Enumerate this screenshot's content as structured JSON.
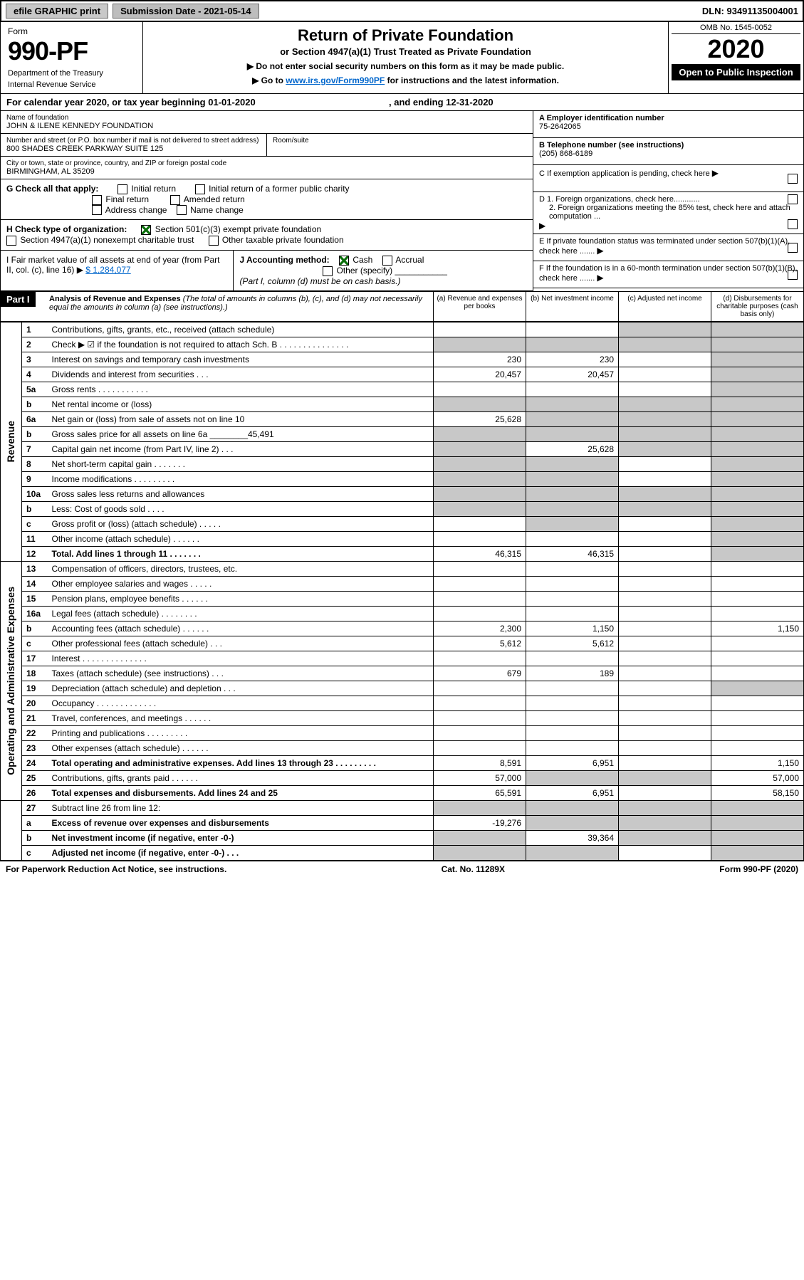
{
  "topbar": {
    "efile": "efile GRAPHIC print",
    "submission": "Submission Date - 2021-05-14",
    "dln": "DLN: 93491135004001"
  },
  "header": {
    "form_label": "Form",
    "form_no": "990-PF",
    "dept": "Department of the Treasury",
    "irs": "Internal Revenue Service",
    "title": "Return of Private Foundation",
    "subtitle": "or Section 4947(a)(1) Trust Treated as Private Foundation",
    "note1": "▶ Do not enter social security numbers on this form as it may be made public.",
    "note2_pre": "▶ Go to ",
    "note2_link": "www.irs.gov/Form990PF",
    "note2_post": " for instructions and the latest information.",
    "omb": "OMB No. 1545-0052",
    "year": "2020",
    "open": "Open to Public Inspection"
  },
  "cal": {
    "text_pre": "For calendar year 2020, or tax year beginning ",
    "begin": "01-01-2020",
    "text_mid": ", and ending ",
    "end": "12-31-2020"
  },
  "info": {
    "name_label": "Name of foundation",
    "name": "JOHN & ILENE KENNEDY FOUNDATION",
    "addr_label": "Number and street (or P.O. box number if mail is not delivered to street address)",
    "addr": "800 SHADES CREEK PARKWAY SUITE 125",
    "room_label": "Room/suite",
    "city_label": "City or town, state or province, country, and ZIP or foreign postal code",
    "city": "BIRMINGHAM, AL  35209",
    "ein_label": "A Employer identification number",
    "ein": "75-2642065",
    "tel_label": "B Telephone number (see instructions)",
    "tel": "(205) 868-6189",
    "c_label": "C If exemption application is pending, check here",
    "d1": "D 1. Foreign organizations, check here............",
    "d2": "2. Foreign organizations meeting the 85% test, check here and attach computation ...",
    "e_label": "E  If private foundation status was terminated under section 507(b)(1)(A), check here .......",
    "f_label": "F  If the foundation is in a 60-month termination under section 507(b)(1)(B), check here .......",
    "g_label": "G Check all that apply:",
    "g_items": [
      "Initial return",
      "Initial return of a former public charity",
      "Final return",
      "Amended return",
      "Address change",
      "Name change"
    ],
    "h_label": "H Check type of organization:",
    "h1": "Section 501(c)(3) exempt private foundation",
    "h2": "Section 4947(a)(1) nonexempt charitable trust",
    "h3": "Other taxable private foundation",
    "i_label": "I Fair market value of all assets at end of year (from Part II, col. (c), line 16) ▶",
    "i_val": "$  1,284,077",
    "j_label": "J Accounting method:",
    "j_cash": "Cash",
    "j_accrual": "Accrual",
    "j_other": "Other (specify)",
    "j_note": "(Part I, column (d) must be on cash basis.)"
  },
  "part1": {
    "label": "Part I",
    "title": "Analysis of Revenue and Expenses",
    "title_note": " (The total of amounts in columns (b), (c), and (d) may not necessarily equal the amounts in column (a) (see instructions).)",
    "col_a": "(a) Revenue and expenses per books",
    "col_b": "(b) Net investment income",
    "col_c": "(c) Adjusted net income",
    "col_d": "(d) Disbursements for charitable purposes (cash basis only)"
  },
  "sections": {
    "revenue": "Revenue",
    "opex": "Operating and Administrative Expenses"
  },
  "rows": [
    {
      "n": "1",
      "d": "Contributions, gifts, grants, etc., received (attach schedule)",
      "a": "",
      "b": "",
      "c": "grey",
      "dcol": "grey"
    },
    {
      "n": "2",
      "d": "Check ▶ ☑ if the foundation is not required to attach Sch. B    .   .   .   .   .   .   .   .   .   .   .   .   .   .   .",
      "a": "grey",
      "b": "grey",
      "c": "grey",
      "dcol": "grey"
    },
    {
      "n": "3",
      "d": "Interest on savings and temporary cash investments",
      "a": "230",
      "b": "230",
      "c": "",
      "dcol": "grey"
    },
    {
      "n": "4",
      "d": "Dividends and interest from securities   .   .   .",
      "a": "20,457",
      "b": "20,457",
      "c": "",
      "dcol": "grey"
    },
    {
      "n": "5a",
      "d": "Gross rents   .   .   .   .   .   .   .   .   .   .   .",
      "a": "",
      "b": "",
      "c": "",
      "dcol": "grey"
    },
    {
      "n": "b",
      "d": "Net rental income or (loss)  ",
      "a": "grey",
      "b": "grey",
      "c": "grey",
      "dcol": "grey"
    },
    {
      "n": "6a",
      "d": "Net gain or (loss) from sale of assets not on line 10",
      "a": "25,628",
      "b": "grey",
      "c": "grey",
      "dcol": "grey"
    },
    {
      "n": "b",
      "d": "Gross sales price for all assets on line 6a ________45,491",
      "a": "grey",
      "b": "grey",
      "c": "grey",
      "dcol": "grey"
    },
    {
      "n": "7",
      "d": "Capital gain net income (from Part IV, line 2)   .   .   .",
      "a": "grey",
      "b": "25,628",
      "c": "grey",
      "dcol": "grey"
    },
    {
      "n": "8",
      "d": "Net short-term capital gain   .   .   .   .   .   .   .",
      "a": "grey",
      "b": "grey",
      "c": "",
      "dcol": "grey"
    },
    {
      "n": "9",
      "d": "Income modifications   .   .   .   .   .   .   .   .   .",
      "a": "grey",
      "b": "grey",
      "c": "",
      "dcol": "grey"
    },
    {
      "n": "10a",
      "d": "Gross sales less returns and allowances",
      "a": "grey",
      "b": "grey",
      "c": "grey",
      "dcol": "grey"
    },
    {
      "n": "b",
      "d": "Less: Cost of goods sold   .   .   .   .",
      "a": "grey",
      "b": "grey",
      "c": "grey",
      "dcol": "grey"
    },
    {
      "n": "c",
      "d": "Gross profit or (loss) (attach schedule)   .   .   .   .   .",
      "a": "",
      "b": "grey",
      "c": "",
      "dcol": "grey"
    },
    {
      "n": "11",
      "d": "Other income (attach schedule)   .   .   .   .   .   .",
      "a": "",
      "b": "",
      "c": "",
      "dcol": "grey"
    },
    {
      "n": "12",
      "d": "Total. Add lines 1 through 11   .   .   .   .   .   .   .",
      "a": "46,315",
      "b": "46,315",
      "c": "",
      "dcol": "grey",
      "bold": true
    }
  ],
  "opex_rows": [
    {
      "n": "13",
      "d": "Compensation of officers, directors, trustees, etc.",
      "a": "",
      "b": "",
      "c": "",
      "dcol": ""
    },
    {
      "n": "14",
      "d": "Other employee salaries and wages   .   .   .   .   .",
      "a": "",
      "b": "",
      "c": "",
      "dcol": ""
    },
    {
      "n": "15",
      "d": "Pension plans, employee benefits   .   .   .   .   .   .",
      "a": "",
      "b": "",
      "c": "",
      "dcol": ""
    },
    {
      "n": "16a",
      "d": "Legal fees (attach schedule)   .   .   .   .   .   .   .   .",
      "a": "",
      "b": "",
      "c": "",
      "dcol": ""
    },
    {
      "n": "b",
      "d": "Accounting fees (attach schedule)   .   .   .   .   .   .",
      "a": "2,300",
      "b": "1,150",
      "c": "",
      "dcol": "1,150"
    },
    {
      "n": "c",
      "d": "Other professional fees (attach schedule)   .   .   .",
      "a": "5,612",
      "b": "5,612",
      "c": "",
      "dcol": ""
    },
    {
      "n": "17",
      "d": "Interest   .   .   .   .   .   .   .   .   .   .   .   .   .   .",
      "a": "",
      "b": "",
      "c": "",
      "dcol": ""
    },
    {
      "n": "18",
      "d": "Taxes (attach schedule) (see instructions)   .   .   .",
      "a": "679",
      "b": "189",
      "c": "",
      "dcol": ""
    },
    {
      "n": "19",
      "d": "Depreciation (attach schedule) and depletion   .   .   .",
      "a": "",
      "b": "",
      "c": "",
      "dcol": "grey"
    },
    {
      "n": "20",
      "d": "Occupancy   .   .   .   .   .   .   .   .   .   .   .   .   .",
      "a": "",
      "b": "",
      "c": "",
      "dcol": ""
    },
    {
      "n": "21",
      "d": "Travel, conferences, and meetings   .   .   .   .   .   .",
      "a": "",
      "b": "",
      "c": "",
      "dcol": ""
    },
    {
      "n": "22",
      "d": "Printing and publications   .   .   .   .   .   .   .   .   .",
      "a": "",
      "b": "",
      "c": "",
      "dcol": ""
    },
    {
      "n": "23",
      "d": "Other expenses (attach schedule)   .   .   .   .   .   .",
      "a": "",
      "b": "",
      "c": "",
      "dcol": ""
    },
    {
      "n": "24",
      "d": "Total operating and administrative expenses. Add lines 13 through 23   .   .   .   .   .   .   .   .   .",
      "a": "8,591",
      "b": "6,951",
      "c": "",
      "dcol": "1,150",
      "bold": true
    },
    {
      "n": "25",
      "d": "Contributions, gifts, grants paid   .   .   .   .   .   .",
      "a": "57,000",
      "b": "grey",
      "c": "grey",
      "dcol": "57,000"
    },
    {
      "n": "26",
      "d": "Total expenses and disbursements. Add lines 24 and 25",
      "a": "65,591",
      "b": "6,951",
      "c": "",
      "dcol": "58,150",
      "bold": true
    }
  ],
  "final_rows": [
    {
      "n": "27",
      "d": "Subtract line 26 from line 12:",
      "a": "grey",
      "b": "grey",
      "c": "grey",
      "dcol": "grey"
    },
    {
      "n": "a",
      "d": "Excess of revenue over expenses and disbursements",
      "a": "-19,276",
      "b": "grey",
      "c": "grey",
      "dcol": "grey",
      "bold": true
    },
    {
      "n": "b",
      "d": "Net investment income (if negative, enter -0-)",
      "a": "grey",
      "b": "39,364",
      "c": "grey",
      "dcol": "grey",
      "bold": true
    },
    {
      "n": "c",
      "d": "Adjusted net income (if negative, enter -0-)   .   .   .",
      "a": "grey",
      "b": "grey",
      "c": "",
      "dcol": "grey",
      "bold": true
    }
  ],
  "footer": {
    "left": "For Paperwork Reduction Act Notice, see instructions.",
    "mid": "Cat. No. 11289X",
    "right": "Form 990-PF (2020)"
  },
  "colors": {
    "grey": "#c8c8c8",
    "link": "#0066cc",
    "check": "#0a6e0a"
  }
}
